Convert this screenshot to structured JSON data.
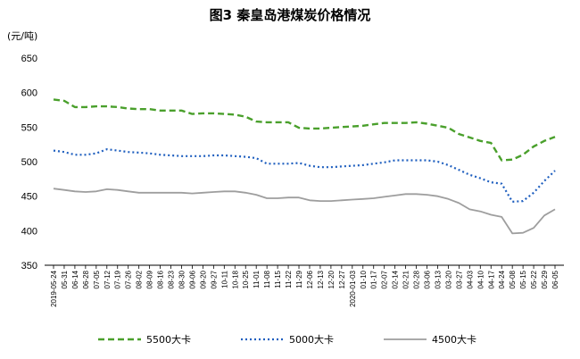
{
  "chart_data": {
    "type": "line",
    "title": "图3   秦皇岛港煤炭价格情况",
    "ylabel": "(元/吨)",
    "ylim": [
      350,
      650
    ],
    "yticks": [
      350,
      400,
      450,
      500,
      550,
      600,
      650
    ],
    "x": [
      "2019-05-24",
      "05-31",
      "06-14",
      "06-28",
      "07-05",
      "07-12",
      "07-19",
      "07-26",
      "08-02",
      "08-09",
      "08-16",
      "08-23",
      "08-30",
      "09-06",
      "09-20",
      "09-27",
      "10-11",
      "10-18",
      "10-25",
      "11-01",
      "11-08",
      "11-15",
      "11-22",
      "11-29",
      "12-06",
      "12-13",
      "12-20",
      "12-27",
      "2020-01-03",
      "01-10",
      "01-17",
      "02-07",
      "02-14",
      "02-21",
      "02-28",
      "03-06",
      "03-13",
      "03-20",
      "03-27",
      "04-03",
      "04-10",
      "04-17",
      "04-24",
      "05-08",
      "05-15",
      "05-22",
      "05-29",
      "06-05"
    ],
    "series": [
      {
        "name": "5500大卡",
        "color": "#4aa02c",
        "values": [
          590,
          588,
          579,
          579,
          580,
          580,
          579,
          577,
          576,
          576,
          574,
          574,
          574,
          569,
          570,
          570,
          569,
          568,
          565,
          558,
          557,
          557,
          557,
          549,
          548,
          548,
          549,
          550,
          551,
          552,
          554,
          556,
          556,
          556,
          557,
          555,
          552,
          549,
          540,
          535,
          530,
          527,
          502,
          503,
          510,
          522,
          530,
          536
        ]
      },
      {
        "name": "5000大卡",
        "color": "#1f5fbf",
        "values": [
          516,
          514,
          510,
          510,
          512,
          518,
          516,
          514,
          513,
          512,
          510,
          509,
          508,
          508,
          508,
          509,
          509,
          508,
          507,
          505,
          497,
          497,
          497,
          498,
          494,
          492,
          492,
          493,
          494,
          495,
          497,
          499,
          502,
          502,
          502,
          502,
          500,
          495,
          488,
          481,
          476,
          470,
          468,
          442,
          443,
          455,
          472,
          487
        ]
      },
      {
        "name": "4500大卡",
        "color": "#9e9e9e",
        "values": [
          461,
          459,
          457,
          456,
          457,
          460,
          459,
          457,
          455,
          455,
          455,
          455,
          455,
          454,
          455,
          456,
          457,
          457,
          455,
          452,
          447,
          447,
          448,
          448,
          444,
          443,
          443,
          444,
          445,
          446,
          447,
          449,
          451,
          453,
          453,
          452,
          450,
          446,
          440,
          431,
          428,
          423,
          420,
          396,
          397,
          404,
          422,
          431
        ]
      }
    ]
  }
}
